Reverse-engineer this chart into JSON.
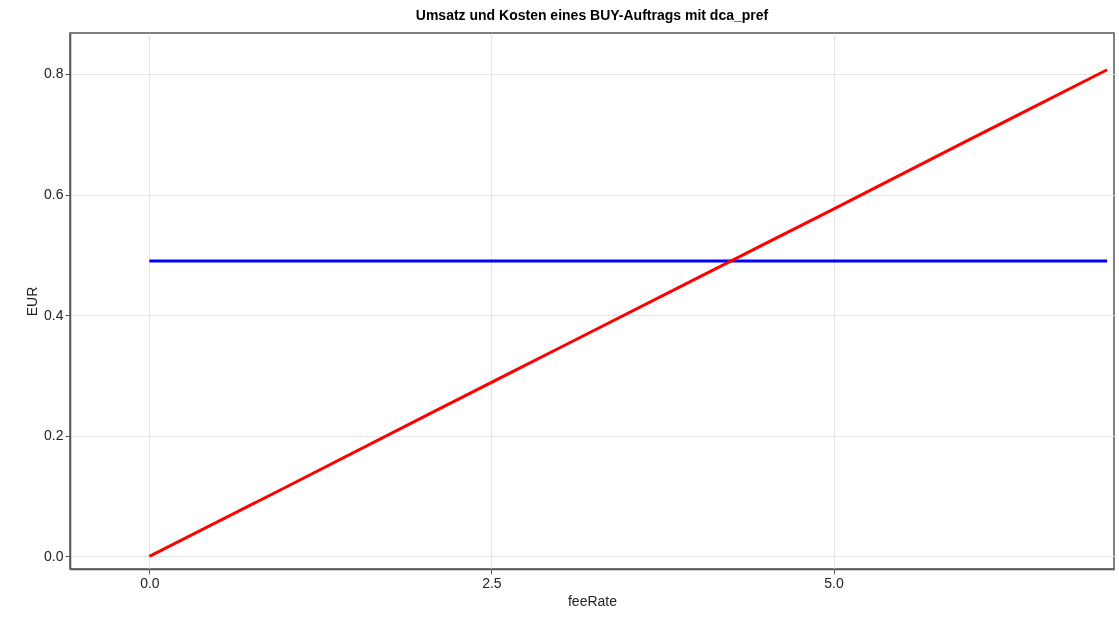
{
  "chart_data": {
    "type": "line",
    "title": "Umsatz und Kosten eines BUY-Auftrags mit dca_pref",
    "xlabel": "feeRate",
    "ylabel": "EUR",
    "series": [
      {
        "color": "#0000ff",
        "x": [
          0,
          1,
          2,
          3,
          4,
          5,
          6,
          7
        ],
        "values": [
          0.49,
          0.49,
          0.49,
          0.49,
          0.49,
          0.49,
          0.49,
          0.49
        ]
      },
      {
        "color": "#ff0000",
        "x": [
          0,
          1,
          2,
          3,
          4,
          5,
          6,
          7
        ],
        "values": [
          0,
          0.115,
          0.231,
          0.346,
          0.461,
          0.576,
          0.692,
          0.807
        ]
      }
    ],
    "xlim": [
      -0.58,
      7.05
    ],
    "ylim": [
      -0.021,
      0.868
    ],
    "xticks": [
      {
        "value": 0,
        "label": "0.0"
      },
      2.5,
      {
        "value": 5,
        "label": "5.0"
      }
    ],
    "yticks": [
      {
        "value": 0,
        "label": "0.0"
      },
      0.2,
      0.4,
      0.6,
      0.8
    ],
    "grid": true,
    "marker": "none",
    "line_style": "solid"
  }
}
